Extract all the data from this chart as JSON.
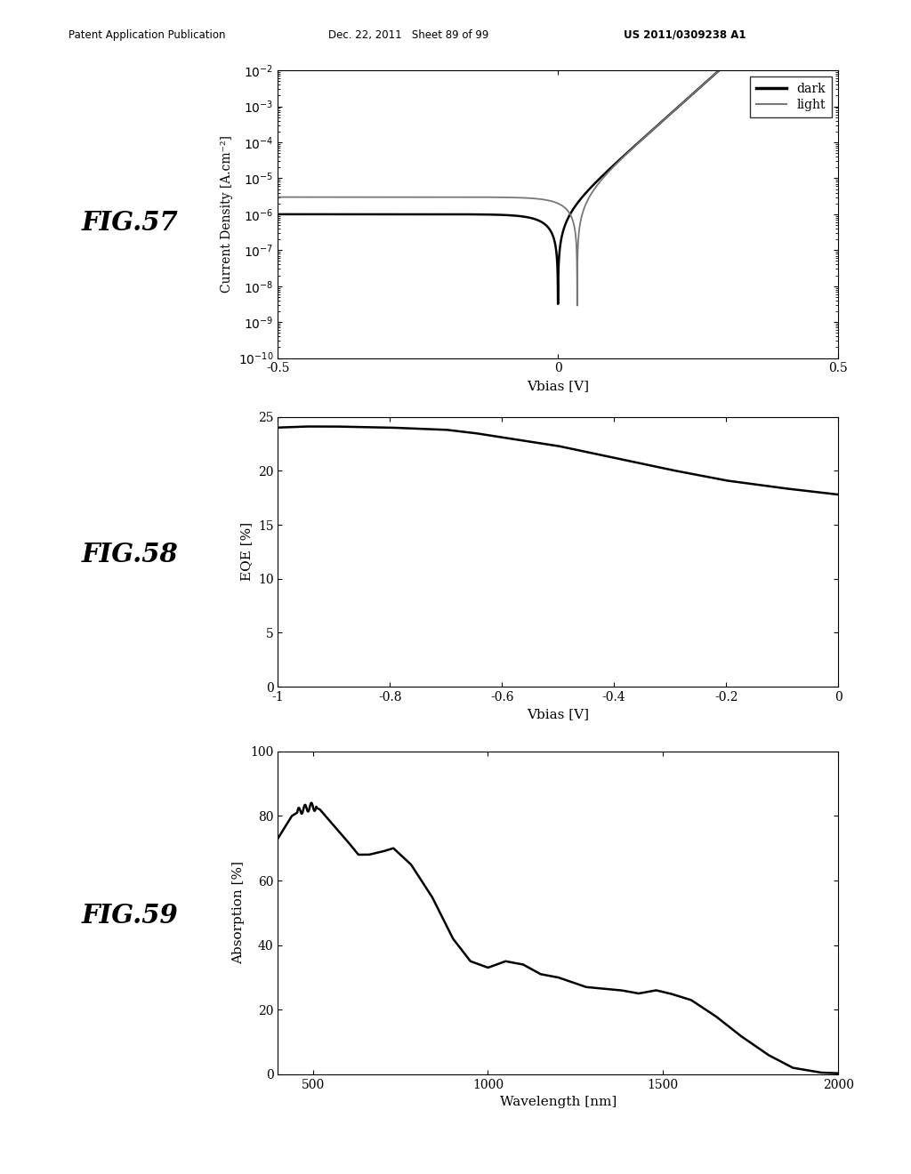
{
  "header_left": "Patent Application Publication",
  "header_mid": "Dec. 22, 2011   Sheet 89 of 99",
  "header_right": "US 2011/0309238 A1",
  "fig57_label": "FIG.57",
  "fig58_label": "FIG.58",
  "fig59_label": "FIG.59",
  "fig57": {
    "xlabel": "Vbias [V]",
    "ylabel": "Current Density [A.cm⁻²]",
    "xlim": [
      -0.5,
      0.5
    ],
    "ylim_log": [
      -10,
      -2
    ],
    "xticks": [
      -0.5,
      0,
      0.5
    ],
    "legend": [
      "dark",
      "light"
    ]
  },
  "fig58": {
    "xlabel": "Vbias [V]",
    "ylabel": "EQE [%]",
    "xlim": [
      -1.0,
      0.0
    ],
    "ylim": [
      0,
      25
    ],
    "xticks": [
      -1.0,
      -0.8,
      -0.6,
      -0.4,
      -0.2,
      0.0
    ],
    "yticks": [
      0,
      5,
      10,
      15,
      20,
      25
    ]
  },
  "fig59": {
    "xlabel": "Wavelength [nm]",
    "ylabel": "Absorption [%]",
    "xlim": [
      400,
      2000
    ],
    "ylim": [
      0,
      100
    ],
    "xticks": [
      500,
      1000,
      1500,
      2000
    ],
    "yticks": [
      0,
      20,
      40,
      60,
      80,
      100
    ]
  },
  "background_color": "#ffffff",
  "line_color_dark": "#000000",
  "line_color_light": "#777777"
}
